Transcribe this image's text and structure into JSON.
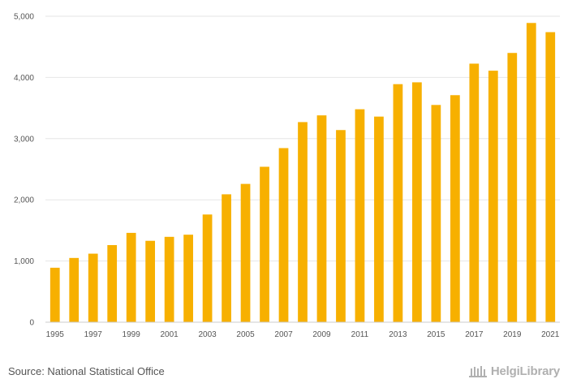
{
  "chart_data": {
    "type": "bar",
    "title": "",
    "xlabel": "",
    "ylabel": "",
    "categories": [
      "1995",
      "1996",
      "1997",
      "1998",
      "1999",
      "2000",
      "2001",
      "2002",
      "2003",
      "2004",
      "2005",
      "2006",
      "2007",
      "2008",
      "2009",
      "2010",
      "2011",
      "2012",
      "2013",
      "2014",
      "2015",
      "2016",
      "2017",
      "2018",
      "2019",
      "2020",
      "2021"
    ],
    "values": [
      890,
      1050,
      1120,
      1260,
      1460,
      1330,
      1395,
      1430,
      1760,
      2090,
      2260,
      2540,
      2845,
      3270,
      3380,
      3140,
      3480,
      3360,
      3890,
      3920,
      3550,
      3710,
      4225,
      4110,
      4400,
      4890,
      4740
    ],
    "x_tick_labels": [
      "1995",
      "1997",
      "1999",
      "2001",
      "2003",
      "2005",
      "2007",
      "2009",
      "2011",
      "2013",
      "2015",
      "2017",
      "2019",
      "2021"
    ],
    "y_tick_labels": [
      "0",
      "1,000",
      "2,000",
      "3,000",
      "4,000",
      "5,000"
    ],
    "ylim": [
      0,
      5000
    ],
    "grid": true,
    "bar_color": "#f7b000"
  },
  "footer": {
    "source": "Source: National Statistical Office",
    "logo_text": "HelgiLibrary",
    "logo_color": "#b0b0b0"
  }
}
